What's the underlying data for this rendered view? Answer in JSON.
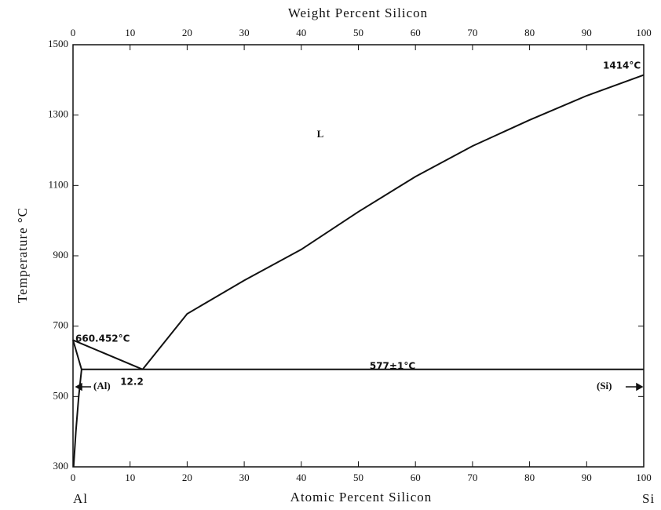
{
  "chart_data": {
    "type": "line",
    "title": "Weight Percent Silicon",
    "x_label": "Atomic Percent Silicon",
    "y_label": "Temperature °C",
    "left_end_label": "Al",
    "right_end_label": "Si",
    "xlim": [
      0,
      100
    ],
    "xticks": [
      0,
      10,
      20,
      30,
      40,
      50,
      60,
      70,
      80,
      90,
      100
    ],
    "x2lim": [
      0,
      100
    ],
    "x2ticks": [
      0,
      10,
      20,
      30,
      40,
      50,
      60,
      70,
      80,
      90,
      100
    ],
    "ylim": [
      300,
      1500
    ],
    "yticks": [
      300,
      500,
      700,
      900,
      1100,
      1300,
      1500
    ],
    "color": "#111111",
    "series": [
      {
        "x": [
          0,
          12.2
        ],
        "values": [
          660.452,
          577
        ]
      },
      {
        "x": [
          12.2,
          20,
          30,
          40,
          50,
          60,
          70,
          80,
          90,
          100
        ],
        "values": [
          577,
          735,
          830,
          918,
          1025,
          1125,
          1212,
          1286,
          1355,
          1414
        ]
      },
      {
        "x": [
          1.5,
          100
        ],
        "values": [
          577,
          577
        ]
      },
      {
        "x": [
          0,
          1.5,
          1.0,
          0.5,
          0.1
        ],
        "values": [
          660.452,
          577,
          500,
          400,
          300
        ]
      }
    ],
    "annotations": [
      "660.452°C",
      "12.2",
      "577±1°C",
      "1414°C",
      "L",
      "(Al)",
      "(Si)"
    ]
  }
}
